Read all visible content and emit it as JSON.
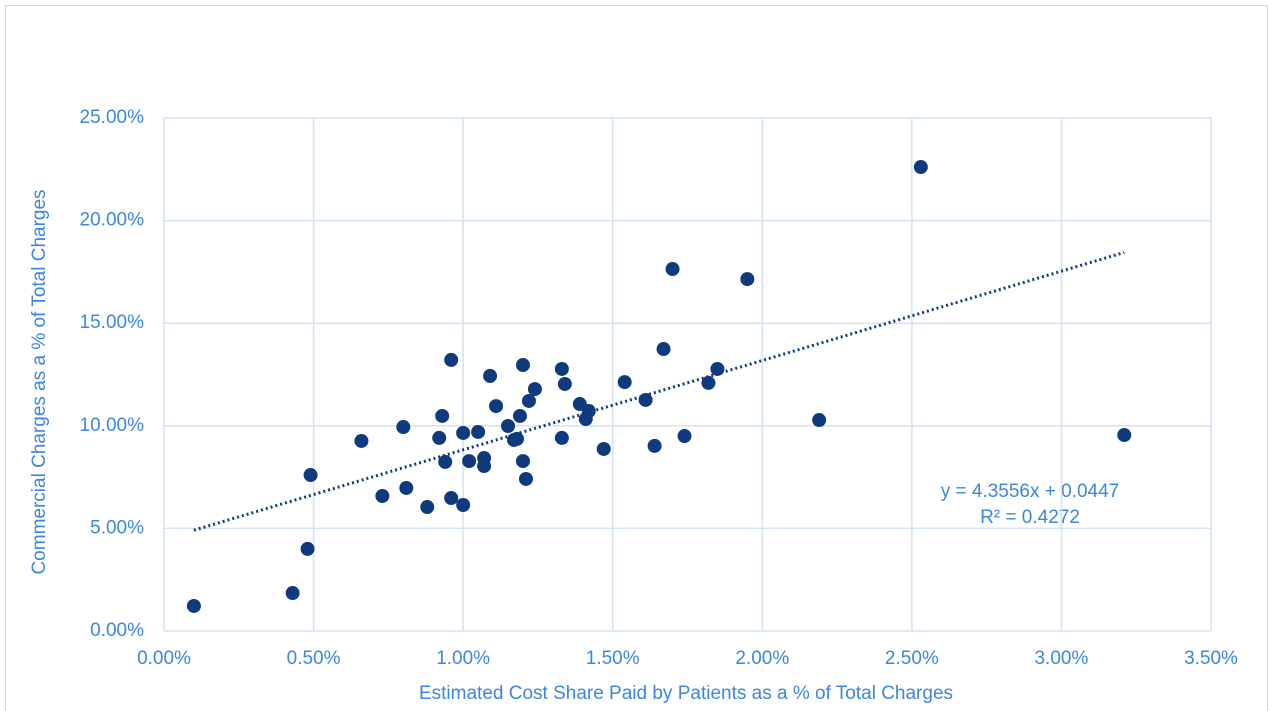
{
  "chart_data": {
    "type": "scatter",
    "xlabel": "Estimated Cost Share Paid by Patients as a % of Total Charges",
    "ylabel": "Commercial Charges as a % of Total Charges",
    "color": "#0f3a7d",
    "x": [
      0.1,
      0.43,
      0.48,
      0.49,
      0.66,
      0.73,
      0.8,
      0.81,
      0.88,
      0.92,
      0.93,
      0.94,
      0.96,
      0.96,
      1.0,
      1.0,
      1.02,
      1.05,
      1.07,
      1.07,
      1.09,
      1.11,
      1.15,
      1.17,
      1.18,
      1.19,
      1.2,
      1.2,
      1.21,
      1.22,
      1.24,
      1.33,
      1.33,
      1.34,
      1.39,
      1.41,
      1.42,
      1.47,
      1.54,
      1.61,
      1.64,
      1.67,
      1.7,
      1.74,
      1.82,
      1.85,
      1.95,
      2.19,
      2.53,
      3.21
    ],
    "values": [
      1.22,
      1.85,
      4.0,
      7.6,
      9.26,
      6.58,
      9.94,
      6.97,
      6.04,
      9.41,
      10.48,
      8.24,
      13.21,
      6.48,
      9.65,
      6.14,
      8.28,
      9.7,
      8.43,
      8.04,
      12.43,
      10.96,
      9.99,
      9.31,
      9.36,
      10.48,
      12.96,
      8.28,
      7.41,
      11.21,
      11.79,
      12.77,
      9.41,
      12.04,
      11.06,
      10.33,
      10.72,
      8.87,
      12.13,
      11.26,
      9.02,
      13.74,
      17.64,
      9.5,
      12.09,
      12.77,
      17.15,
      10.28,
      22.61,
      9.55
    ],
    "trendline": {
      "x": [
        0.1,
        3.21
      ],
      "values": [
        4.91,
        18.45
      ],
      "equation": "y = 4.3556x + 0.0447",
      "r_squared": "R² = 0.4272"
    },
    "xlim": [
      0,
      3.5
    ],
    "xticks": [
      {
        "value": 0,
        "label": "0.00%"
      },
      {
        "value": 0.5,
        "label": "0.50%"
      },
      {
        "value": 1,
        "label": "1.00%"
      },
      {
        "value": 1.5,
        "label": "1.50%"
      },
      {
        "value": 2,
        "label": "2.00%"
      },
      {
        "value": 2.5,
        "label": "2.50%"
      },
      {
        "value": 3,
        "label": "3.00%"
      },
      {
        "value": 3.5,
        "label": "3.50%"
      }
    ],
    "ylim": [
      0,
      25
    ],
    "yticks": [
      {
        "value": 0,
        "label": "0.00%"
      },
      {
        "value": 5,
        "label": "5.00%"
      },
      {
        "value": 10,
        "label": "10.00%"
      },
      {
        "value": 15,
        "label": "15.00%"
      },
      {
        "value": 20,
        "label": "20.00%"
      },
      {
        "value": 25,
        "label": "25.00%"
      }
    ],
    "grid": true
  }
}
